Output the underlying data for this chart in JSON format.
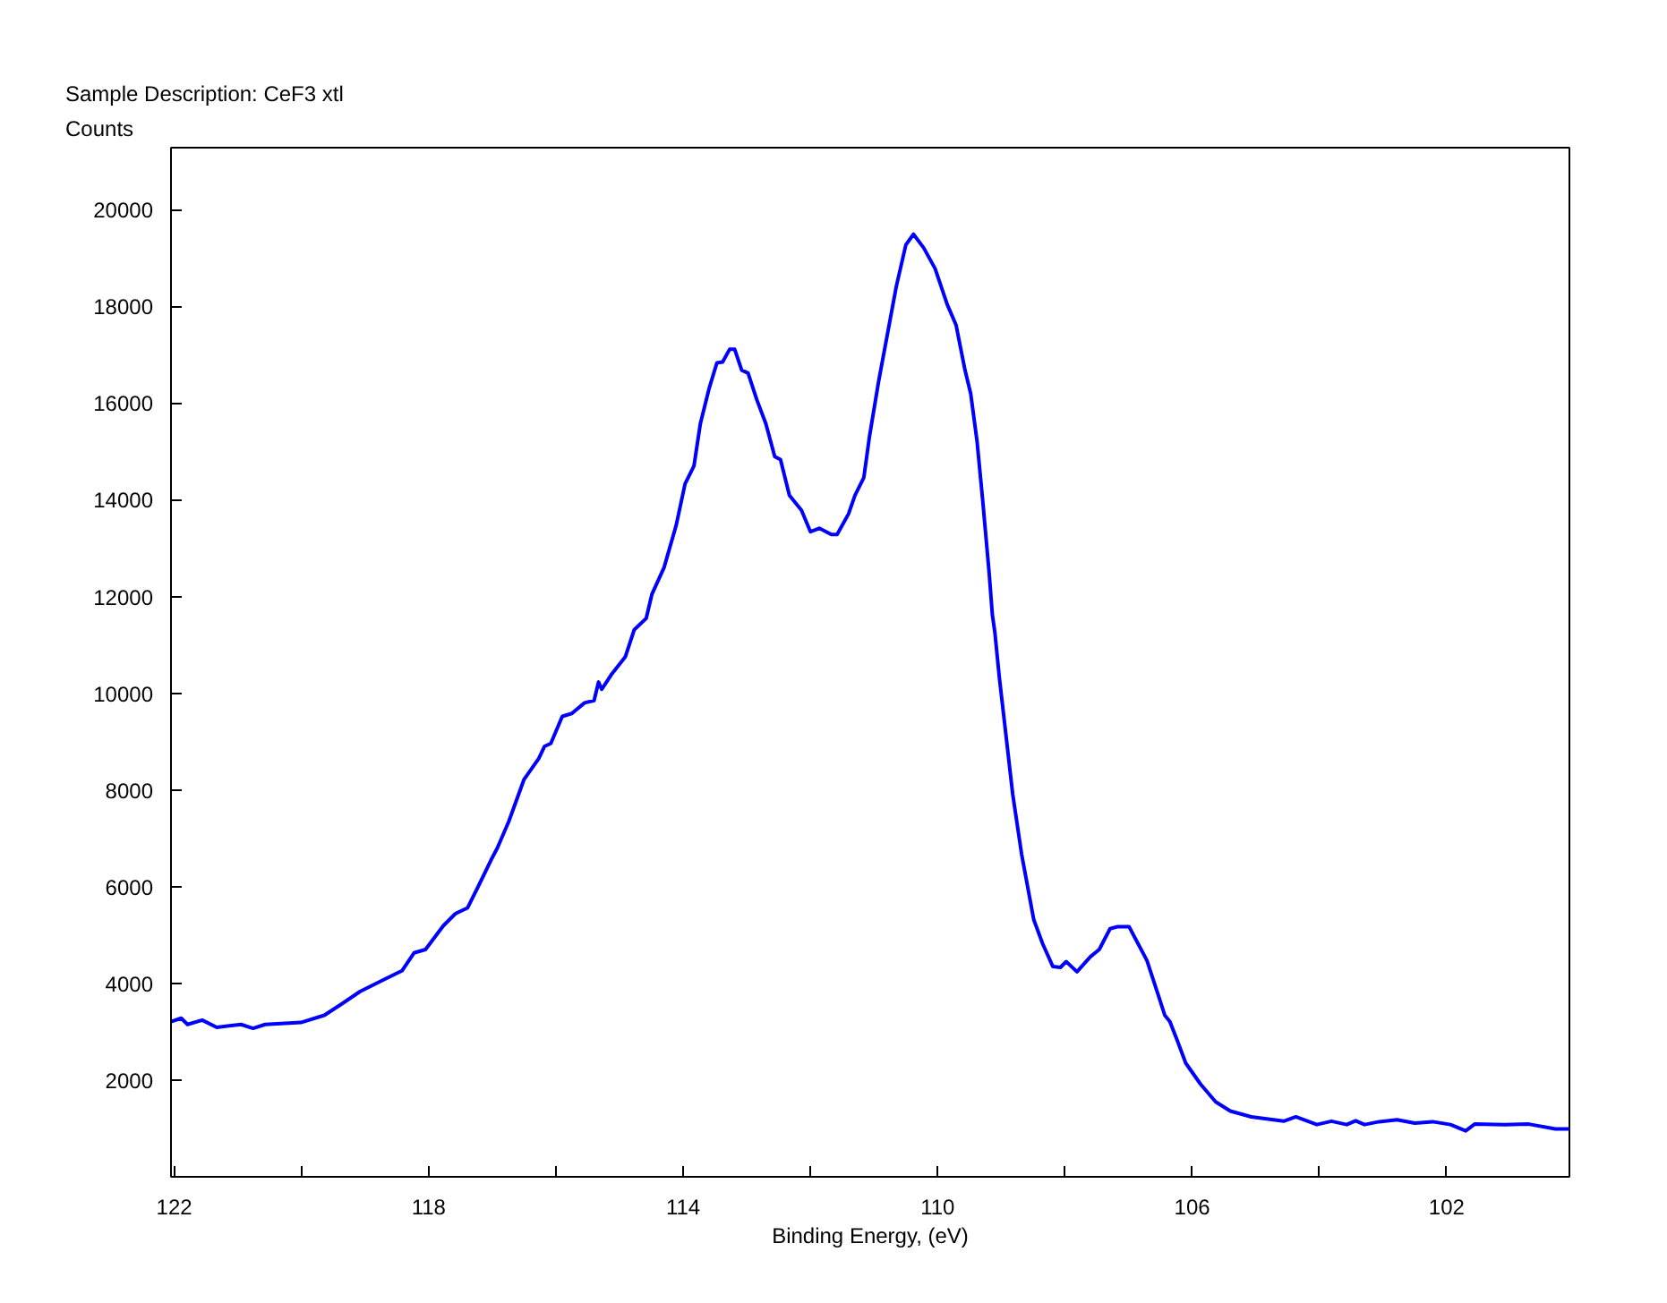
{
  "chart_data": {
    "type": "line",
    "title": "Sample Description: CeF3 xtl",
    "ylabel": "Counts",
    "xlabel": "Binding Energy, (eV)",
    "x": [
      122.05,
      121.89,
      121.79,
      121.56,
      121.33,
      120.95,
      120.76,
      120.57,
      120.01,
      119.64,
      119.36,
      119.08,
      118.7,
      118.42,
      118.23,
      118.05,
      117.77,
      117.58,
      117.39,
      117.2,
      117.02,
      116.92,
      116.74,
      116.5,
      116.27,
      116.18,
      116.08,
      115.9,
      115.75,
      115.55,
      115.4,
      115.33,
      115.28,
      115.12,
      114.91,
      114.77,
      114.58,
      114.49,
      114.3,
      114.11,
      113.97,
      113.83,
      113.73,
      113.59,
      113.47,
      113.38,
      113.27,
      113.19,
      113.08,
      112.98,
      112.84,
      112.7,
      112.56,
      112.47,
      112.33,
      112.14,
      112.0,
      111.86,
      111.67,
      111.58,
      111.4,
      111.3,
      111.16,
      111.07,
      110.93,
      110.79,
      110.65,
      110.5,
      110.38,
      110.22,
      110.04,
      109.85,
      109.71,
      109.57,
      109.48,
      109.38,
      109.29,
      109.19,
      109.14,
      109.1,
      109.03,
      108.96,
      108.82,
      108.68,
      108.49,
      108.35,
      108.19,
      108.07,
      107.98,
      107.81,
      107.6,
      107.46,
      107.29,
      107.18,
      106.99,
      106.85,
      106.71,
      106.52,
      106.43,
      106.35,
      106.24,
      106.1,
      105.87,
      105.63,
      105.4,
      105.07,
      104.56,
      104.37,
      104.04,
      103.81,
      103.57,
      103.43,
      103.29,
      103.06,
      102.78,
      102.5,
      102.22,
      101.94,
      101.7,
      101.56,
      101.09,
      100.71,
      100.29,
      100.07
    ],
    "values": [
      3210,
      3280,
      3150,
      3240,
      3090,
      3150,
      3070,
      3150,
      3190,
      3340,
      3580,
      3830,
      4080,
      4260,
      4630,
      4700,
      5190,
      5440,
      5560,
      6060,
      6550,
      6800,
      7350,
      8220,
      8650,
      8900,
      8960,
      9520,
      9580,
      9800,
      9850,
      10230,
      10080,
      10400,
      10750,
      11310,
      11550,
      12050,
      12600,
      13470,
      14330,
      14700,
      15570,
      16310,
      16830,
      16850,
      17110,
      17110,
      16680,
      16620,
      16060,
      15570,
      14890,
      14830,
      14090,
      13780,
      13340,
      13410,
      13280,
      13280,
      13710,
      14090,
      14460,
      15320,
      16430,
      17420,
      18410,
      19270,
      19490,
      19210,
      18780,
      18040,
      17610,
      16680,
      16190,
      15200,
      13960,
      12480,
      11620,
      11250,
      10320,
      9520,
      7910,
      6670,
      5320,
      4820,
      4350,
      4330,
      4450,
      4240,
      4550,
      4700,
      5130,
      5170,
      5170,
      4820,
      4470,
      3710,
      3340,
      3210,
      2840,
      2350,
      1920,
      1550,
      1360,
      1240,
      1150,
      1240,
      1080,
      1150,
      1080,
      1160,
      1080,
      1140,
      1180,
      1110,
      1140,
      1080,
      950,
      1090,
      1080,
      1090,
      990,
      990
    ],
    "color": "#0000ff",
    "line_style": "solid",
    "grid": false,
    "xlim": [
      122.05,
      100.07
    ],
    "ylim": [
      0,
      21280
    ],
    "xticks": [
      122,
      {
        "value": 120,
        "label": null
      },
      118,
      {
        "value": 116,
        "label": null
      },
      114,
      {
        "value": 112,
        "label": null
      },
      110,
      {
        "value": 108,
        "label": null
      },
      106,
      {
        "value": 104,
        "label": null
      },
      102
    ],
    "yticks": [
      2000,
      4000,
      6000,
      8000,
      10000,
      12000,
      14000,
      16000,
      18000,
      20000
    ]
  }
}
